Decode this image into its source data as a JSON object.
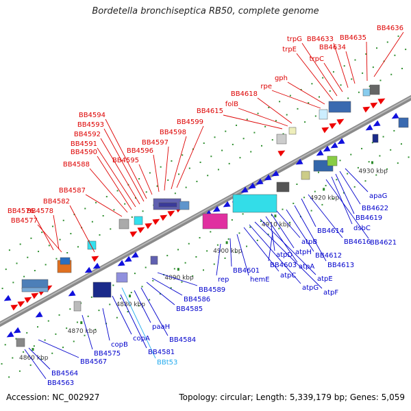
{
  "title": "Bordetella bronchiseptica RB50, complete genome",
  "footer": {
    "accession": "Accession: NC_002927",
    "summary": "Topology: circular; Length: 5,339,179 bp; Genes: 5,059"
  },
  "colors": {
    "forward_label": "#dd0000",
    "reverse_label": "#0000cc",
    "rna_label": "#22aaee",
    "tick_label": "#333333",
    "backbone": "#888888",
    "gene_forward": "#ee0000",
    "gene_reverse": "#1111dd"
  },
  "axis": {
    "ticks": [
      {
        "kbp": 4860,
        "label": "4860 kbp"
      },
      {
        "kbp": 4870,
        "label": "4870 kbp"
      },
      {
        "kbp": 4880,
        "label": "4880 kbp"
      },
      {
        "kbp": 4890,
        "label": "4890 kbp"
      },
      {
        "kbp": 4900,
        "label": "4900 kbp"
      },
      {
        "kbp": 4910,
        "label": "4910 kbp"
      },
      {
        "kbp": 4920,
        "label": "4920 kbp"
      },
      {
        "kbp": 4930,
        "label": "4930 kbp"
      }
    ]
  },
  "forward_labels": [
    "BB4576",
    "BB4578",
    "BB4577",
    "BB4582",
    "BB4587",
    "BB4588",
    "BB4590",
    "BB4591",
    "BB4592",
    "BB4593",
    "BB4594",
    "BB4595",
    "BB4596",
    "BB4597",
    "BB4598",
    "BB4599",
    "BB4615",
    "folB",
    "BB4618",
    "rpe",
    "gph",
    "trpE",
    "trpG",
    "trpC",
    "BB4633",
    "BB4634",
    "BB4635",
    "BB4636"
  ],
  "reverse_labels": [
    "BB4563",
    "BB4564",
    "BB4567",
    "BB4575",
    "copB",
    "copA",
    "BB4581",
    "paaH",
    "BB4584",
    "BB4585",
    "BB4586",
    "BB4589",
    "rep",
    "BB4601",
    "hemE",
    "atpC",
    "atpG",
    "atpF",
    "atpE",
    "atpA",
    "atpH",
    "atpB",
    "BB4603",
    "atpD",
    "BB4612",
    "BB4613",
    "BB4614",
    "BB4616",
    "BB4621",
    "dsbC",
    "BB4619",
    "BB4622",
    "apaG"
  ],
  "rna_labels": [
    "BBt53"
  ]
}
